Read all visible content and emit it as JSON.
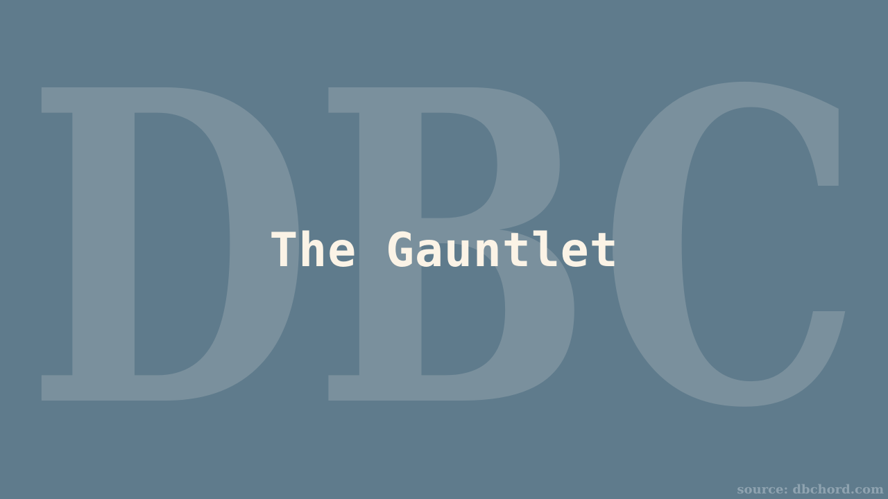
{
  "background_color": "#5f7b8c",
  "watermark": {
    "text": "DBC",
    "color": "#7a909d"
  },
  "title": {
    "text": "The Gauntlet",
    "color": "#fbf3e6"
  },
  "source": {
    "text": "source: dbchord.com"
  }
}
